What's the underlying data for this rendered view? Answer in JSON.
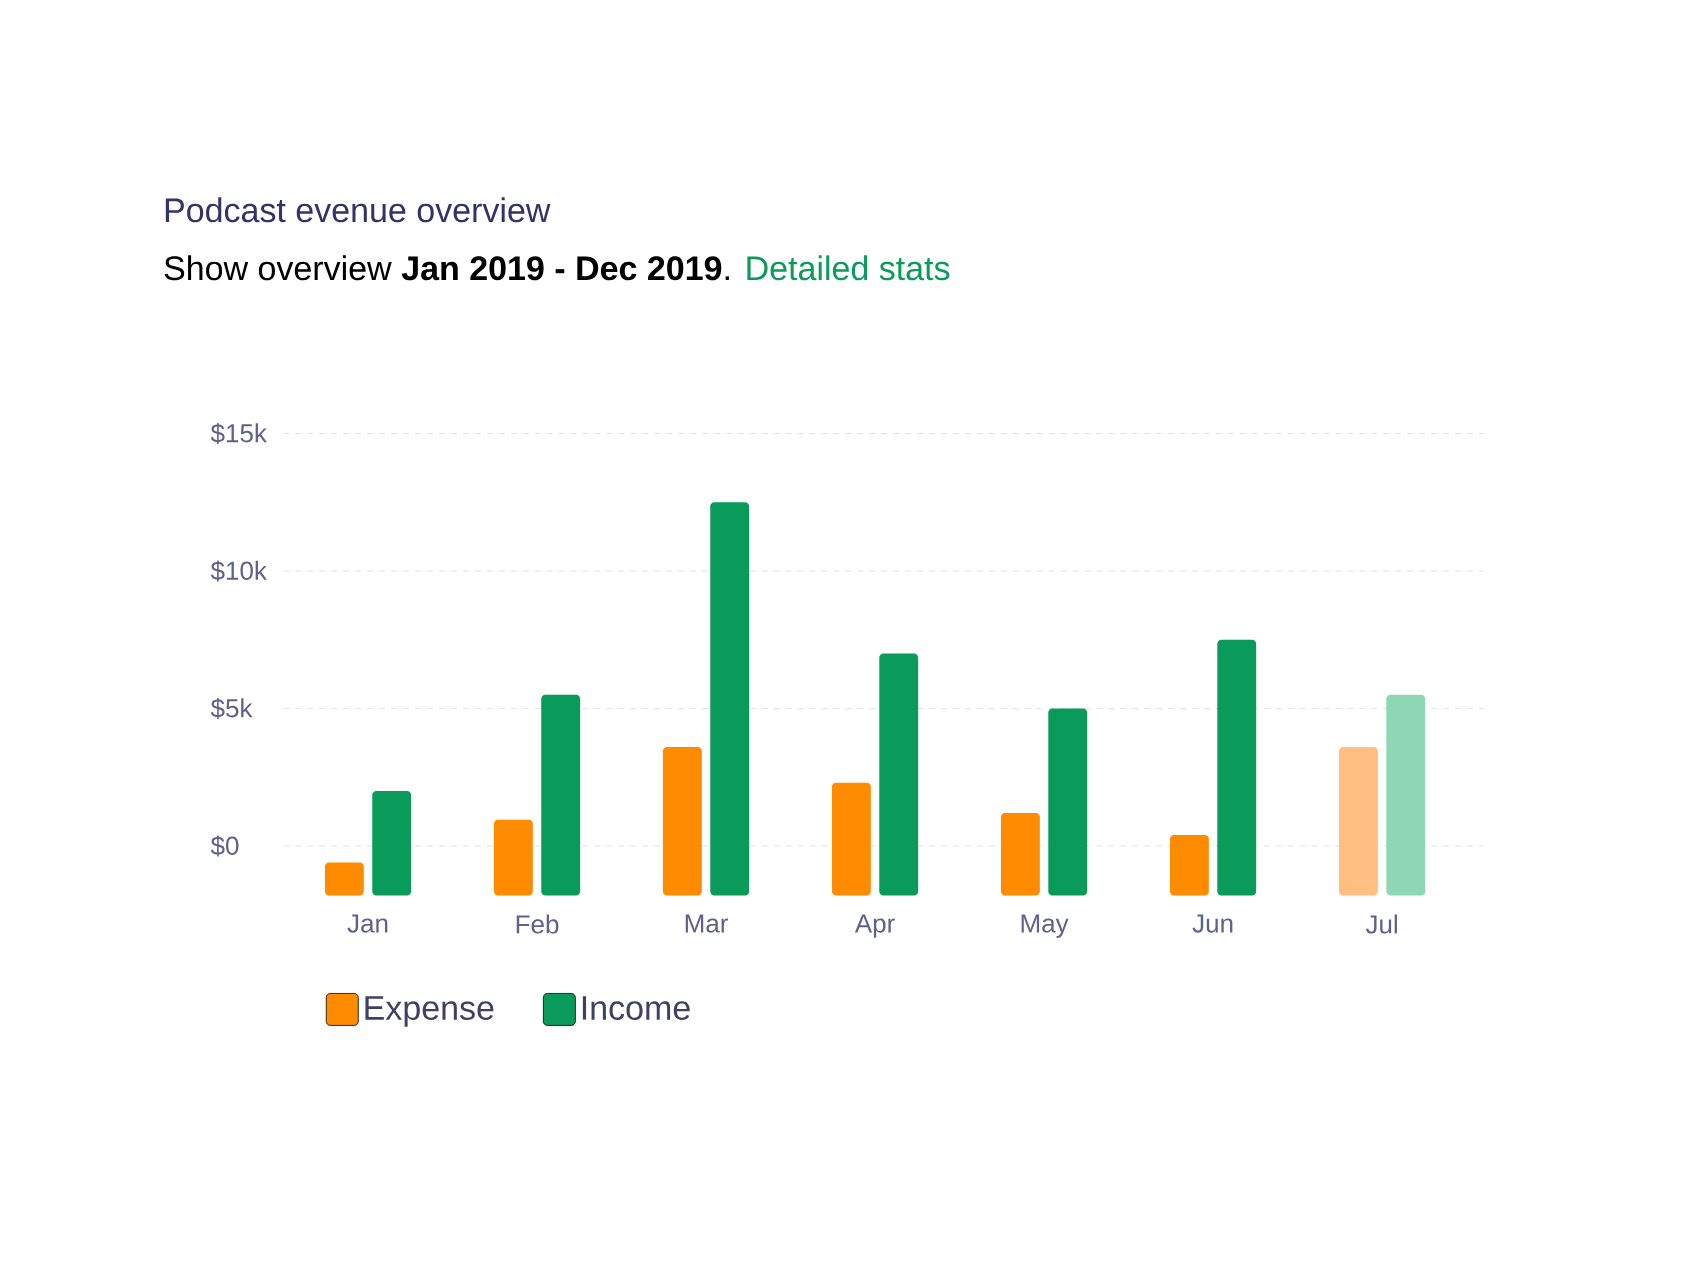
{
  "chart_data": {
    "type": "bar",
    "title": "Podcast evenue overview",
    "subtitle": "Show overview **Jan 2019 - Dec 2019**.",
    "annotations": [
      "Detailed stats"
    ],
    "categories": [
      "Jan",
      "Feb",
      "Mar",
      "Apr",
      "May",
      "Jun",
      "Jul"
    ],
    "series": [
      {
        "name": "Expense",
        "color": "#ff8c00",
        "colors": [
          "#ff8c00",
          "#ff8c00",
          "#ff8c00",
          "#ff8c00",
          "#ff8c00",
          "#ff8c00",
          "#ffbf80"
        ],
        "base": [
          -1.8,
          -1.8,
          -1.8,
          -1.8,
          -1.8,
          -1.8,
          -1.8
        ],
        "values": [
          1.2,
          2.75,
          5.4,
          4.1,
          3.0,
          2.2,
          5.4
        ]
      },
      {
        "name": "Income",
        "color": "#0a9b5a",
        "colors": [
          "#0a9b5a",
          "#0a9b5a",
          "#0a9b5a",
          "#0a9b5a",
          "#0a9b5a",
          "#0a9b5a",
          "#8fd6b5"
        ],
        "base": [
          -1.8,
          -1.8,
          -1.8,
          -1.8,
          -1.8,
          -1.8,
          -1.8
        ],
        "values": [
          3.8,
          7.3,
          14.3,
          8.8,
          6.8,
          9.3,
          7.3
        ]
      }
    ],
    "ylim": [
      -1.8,
      15
    ],
    "yticks": [
      {
        "value": 0,
        "label": "$0"
      },
      {
        "value": 5,
        "label": "$5k"
      },
      {
        "value": 10,
        "label": "$10k"
      },
      {
        "value": 15,
        "label": "$15k"
      }
    ],
    "grid": "y",
    "legend": "bottom left"
  }
}
